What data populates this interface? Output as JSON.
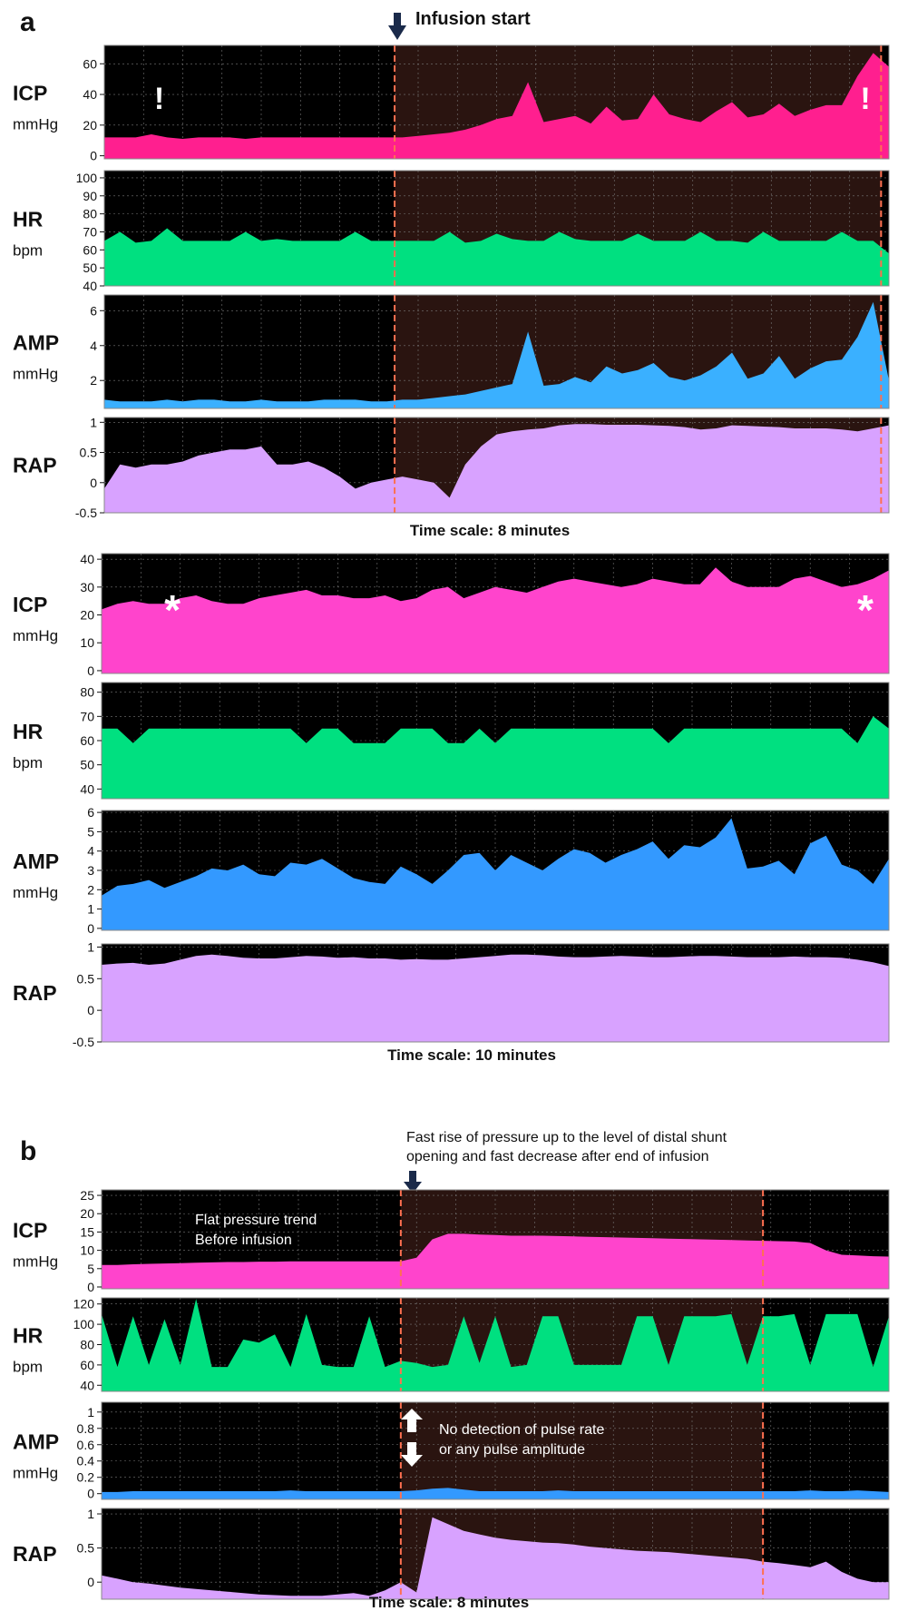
{
  "panel_a_label": "a",
  "panel_b_label": "b",
  "infusion_label": "Infusion start",
  "annotation_b": [
    "Fast rise of pressure up to the level of distal shunt",
    "opening and fast decrease after end of infusion"
  ],
  "colors": {
    "icp": "#ff1f8f",
    "icp_b": "#ff44cc",
    "hr": "#00e080",
    "amp": "#3ab0ff",
    "amp_b": "#3399ff",
    "rap": "#d8a2ff",
    "infusion_bg": "#2a1410",
    "marker": "#ff7050"
  },
  "chart_data": [
    {
      "type": "area",
      "block": "a-top",
      "time_scale_label": "Time scale: 8 minutes",
      "x": [
        0,
        2,
        4,
        6,
        8,
        10,
        12,
        14,
        16,
        18,
        20,
        22,
        24,
        26,
        28,
        30,
        32,
        34,
        36,
        38,
        40,
        42,
        44,
        46,
        48,
        50,
        52,
        54,
        56,
        58,
        60,
        62,
        64,
        66,
        68,
        70,
        72,
        74,
        76,
        78,
        80,
        82,
        84,
        86,
        88,
        90,
        92,
        94,
        96,
        98,
        100
      ],
      "infusion_interval": [
        37,
        99
      ],
      "annotations": [
        {
          "panel": "ICP",
          "text": "!",
          "x": [
            7,
            97
          ]
        }
      ],
      "panels": [
        {
          "name": "ICP",
          "unit": "mmHg",
          "color_key": "icp",
          "yticks": [
            0,
            20,
            40,
            60
          ],
          "ylim": [
            -2,
            72
          ],
          "values": [
            12,
            12,
            12,
            14,
            12,
            11,
            12,
            12,
            12,
            11,
            12,
            12,
            12,
            12,
            12,
            12,
            12,
            12,
            12,
            12,
            13,
            14,
            15,
            17,
            20,
            24,
            26,
            48,
            22,
            24,
            26,
            21,
            32,
            23,
            24,
            40,
            27,
            24,
            22,
            29,
            35,
            25,
            27,
            34,
            26,
            30,
            33,
            33,
            52,
            67,
            58
          ]
        },
        {
          "name": "HR",
          "unit": "bpm",
          "color_key": "hr",
          "yticks": [
            40,
            50,
            60,
            70,
            80,
            90,
            100
          ],
          "ylim": [
            40,
            104
          ],
          "values": [
            65,
            70,
            64,
            65,
            72,
            65,
            65,
            65,
            65,
            70,
            65,
            66,
            65,
            65,
            65,
            65,
            70,
            65,
            65,
            65,
            65,
            65,
            70,
            64,
            65,
            69,
            66,
            65,
            65,
            70,
            66,
            65,
            65,
            65,
            69,
            65,
            65,
            65,
            70,
            65,
            65,
            64,
            70,
            65,
            65,
            65,
            65,
            70,
            65,
            65,
            58
          ]
        },
        {
          "name": "AMP",
          "unit": "mmHg",
          "color_key": "amp",
          "yticks": [
            2,
            4,
            6
          ],
          "ylim": [
            0.4,
            6.9
          ],
          "values": [
            0.9,
            0.8,
            0.8,
            0.8,
            0.9,
            0.8,
            0.9,
            0.9,
            0.8,
            0.8,
            0.9,
            0.8,
            0.8,
            0.8,
            0.9,
            0.9,
            0.9,
            0.8,
            0.8,
            0.9,
            0.9,
            1.0,
            1.1,
            1.2,
            1.4,
            1.6,
            1.8,
            4.8,
            1.7,
            1.8,
            2.2,
            1.9,
            2.8,
            2.4,
            2.6,
            3.0,
            2.2,
            2.0,
            2.3,
            2.8,
            3.6,
            2.1,
            2.4,
            3.4,
            2.1,
            2.7,
            3.1,
            3.2,
            4.5,
            6.5,
            2.0
          ]
        },
        {
          "name": "RAP",
          "unit": "",
          "color_key": "rap",
          "yticks": [
            -0.5,
            0,
            0.5,
            1
          ],
          "ylim": [
            -0.5,
            1.08
          ],
          "values": [
            -0.1,
            0.3,
            0.25,
            0.3,
            0.3,
            0.35,
            0.45,
            0.5,
            0.55,
            0.55,
            0.6,
            0.3,
            0.3,
            0.35,
            0.25,
            0.1,
            -0.1,
            0.0,
            0.05,
            0.1,
            0.05,
            0.0,
            -0.25,
            0.3,
            0.6,
            0.8,
            0.85,
            0.88,
            0.9,
            0.95,
            0.97,
            0.97,
            0.96,
            0.96,
            0.96,
            0.95,
            0.94,
            0.92,
            0.88,
            0.9,
            0.95,
            0.94,
            0.93,
            0.92,
            0.9,
            0.9,
            0.9,
            0.88,
            0.85,
            0.9,
            0.95
          ]
        }
      ]
    },
    {
      "type": "area",
      "block": "a-bottom",
      "time_scale_label": "Time scale: 10 minutes",
      "x": [
        0,
        2,
        4,
        6,
        8,
        10,
        12,
        14,
        16,
        18,
        20,
        22,
        24,
        26,
        28,
        30,
        32,
        34,
        36,
        38,
        40,
        42,
        44,
        46,
        48,
        50,
        52,
        54,
        56,
        58,
        60,
        62,
        64,
        66,
        68,
        70,
        72,
        74,
        76,
        78,
        80,
        82,
        84,
        86,
        88,
        90,
        92,
        94,
        96,
        98,
        100
      ],
      "annotations": [
        {
          "panel": "ICP",
          "text": "*",
          "x": [
            9,
            97
          ]
        }
      ],
      "panels": [
        {
          "name": "ICP",
          "unit": "mmHg",
          "color_key": "icp_b",
          "yticks": [
            0,
            10,
            20,
            30,
            40
          ],
          "ylim": [
            -1,
            42
          ],
          "values": [
            22,
            24,
            25,
            24,
            24,
            26,
            27,
            25,
            24,
            24,
            26,
            27,
            28,
            29,
            27,
            27,
            26,
            26,
            27,
            25,
            26,
            29,
            30,
            26,
            28,
            30,
            29,
            28,
            30,
            32,
            33,
            32,
            31,
            30,
            31,
            33,
            32,
            31,
            31,
            37,
            32,
            30,
            30,
            30,
            33,
            34,
            32,
            30,
            31,
            33,
            36
          ]
        },
        {
          "name": "HR",
          "unit": "bpm",
          "color_key": "hr",
          "yticks": [
            40,
            50,
            60,
            70,
            80
          ],
          "ylim": [
            36,
            84
          ],
          "values": [
            65,
            65,
            59,
            65,
            65,
            65,
            65,
            65,
            65,
            65,
            65,
            65,
            65,
            59,
            65,
            65,
            59,
            59,
            59,
            65,
            65,
            65,
            59,
            59,
            65,
            59,
            65,
            65,
            65,
            65,
            65,
            65,
            65,
            65,
            65,
            65,
            59,
            65,
            65,
            65,
            65,
            65,
            65,
            65,
            65,
            65,
            65,
            65,
            59,
            70,
            65
          ]
        },
        {
          "name": "AMP",
          "unit": "mmHg",
          "color_key": "amp_b",
          "yticks": [
            0,
            1,
            2,
            3,
            4,
            5,
            6
          ],
          "ylim": [
            -0.1,
            6.1
          ],
          "values": [
            1.7,
            2.2,
            2.3,
            2.5,
            2.1,
            2.4,
            2.7,
            3.1,
            3.0,
            3.3,
            2.8,
            2.7,
            3.4,
            3.3,
            3.6,
            3.1,
            2.6,
            2.4,
            2.3,
            3.2,
            2.8,
            2.3,
            3.0,
            3.8,
            3.9,
            3.0,
            3.8,
            3.4,
            3.0,
            3.6,
            4.1,
            3.9,
            3.4,
            3.8,
            4.1,
            4.5,
            3.6,
            4.3,
            4.2,
            4.7,
            5.7,
            3.1,
            3.2,
            3.5,
            2.8,
            4.4,
            4.8,
            3.3,
            3.0,
            2.3,
            3.6
          ]
        },
        {
          "name": "RAP",
          "unit": "",
          "color_key": "rap",
          "yticks": [
            -0.5,
            0,
            0.5,
            1
          ],
          "ylim": [
            -0.5,
            1.05
          ],
          "values": [
            0.72,
            0.74,
            0.75,
            0.72,
            0.74,
            0.8,
            0.86,
            0.88,
            0.86,
            0.83,
            0.82,
            0.82,
            0.84,
            0.86,
            0.85,
            0.83,
            0.84,
            0.82,
            0.82,
            0.8,
            0.81,
            0.8,
            0.8,
            0.82,
            0.84,
            0.86,
            0.88,
            0.88,
            0.87,
            0.85,
            0.84,
            0.84,
            0.85,
            0.86,
            0.85,
            0.84,
            0.84,
            0.85,
            0.86,
            0.86,
            0.85,
            0.84,
            0.84,
            0.84,
            0.85,
            0.84,
            0.84,
            0.83,
            0.8,
            0.76,
            0.7
          ]
        }
      ]
    },
    {
      "type": "area",
      "block": "b",
      "time_scale_label": "Time scale: 8 minutes",
      "x": [
        0,
        2,
        4,
        6,
        8,
        10,
        12,
        14,
        16,
        18,
        20,
        22,
        24,
        26,
        28,
        30,
        32,
        34,
        36,
        38,
        40,
        42,
        44,
        46,
        48,
        50,
        52,
        54,
        56,
        58,
        60,
        62,
        64,
        66,
        68,
        70,
        72,
        74,
        76,
        78,
        80,
        82,
        84,
        86,
        88,
        90,
        92,
        94,
        96,
        98,
        100
      ],
      "infusion_interval": [
        38,
        84
      ],
      "annotations": [
        {
          "panel": "ICP",
          "lines": [
            "Flat pressure trend",
            "Before infusion"
          ]
        },
        {
          "panel": "AMP",
          "lines": [
            "No detection of pulse rate",
            "or any pulse amplitude"
          ]
        }
      ],
      "panels": [
        {
          "name": "ICP",
          "unit": "mmHg",
          "color_key": "icp_b",
          "yticks": [
            0,
            5,
            10,
            15,
            20,
            25
          ],
          "ylim": [
            -0.5,
            26.5
          ],
          "values": [
            6,
            6,
            6.2,
            6.3,
            6.4,
            6.5,
            6.6,
            6.7,
            6.8,
            6.8,
            6.9,
            6.9,
            7,
            7,
            7,
            7,
            7,
            7,
            7,
            7,
            8,
            13,
            14.5,
            14.5,
            14.3,
            14.2,
            14,
            14,
            14,
            13.9,
            13.8,
            13.7,
            13.6,
            13.5,
            13.4,
            13.3,
            13.2,
            13.1,
            13,
            12.9,
            12.8,
            12.7,
            12.6,
            12.5,
            12.4,
            12,
            10,
            8.8,
            8.6,
            8.4,
            8.3
          ]
        },
        {
          "name": "HR",
          "unit": "bpm",
          "color_key": "hr",
          "yticks": [
            40,
            60,
            80,
            100,
            120
          ],
          "ylim": [
            34,
            126
          ],
          "values": [
            110,
            58,
            108,
            60,
            105,
            60,
            125,
            58,
            58,
            85,
            82,
            90,
            58,
            110,
            60,
            58,
            58,
            108,
            58,
            64,
            62,
            58,
            60,
            108,
            62,
            108,
            58,
            60,
            108,
            108,
            60,
            60,
            60,
            60,
            108,
            108,
            60,
            108,
            108,
            108,
            110,
            60,
            108,
            108,
            110,
            60,
            110,
            110,
            110,
            58,
            108
          ]
        },
        {
          "name": "AMP",
          "unit": "mmHg",
          "color_key": "amp_b",
          "yticks": [
            0,
            0.2,
            0.4,
            0.6,
            0.8,
            1
          ],
          "ylim": [
            -0.07,
            1.12
          ],
          "values": [
            0.02,
            0.02,
            0.03,
            0.03,
            0.03,
            0.03,
            0.03,
            0.03,
            0.03,
            0.03,
            0.03,
            0.03,
            0.04,
            0.03,
            0.03,
            0.03,
            0.03,
            0.03,
            0.03,
            0.03,
            0.04,
            0.06,
            0.07,
            0.05,
            0.03,
            0.03,
            0.03,
            0.03,
            0.03,
            0.04,
            0.03,
            0.03,
            0.03,
            0.03,
            0.03,
            0.03,
            0.03,
            0.03,
            0.03,
            0.03,
            0.03,
            0.03,
            0.03,
            0.03,
            0.03,
            0.04,
            0.03,
            0.03,
            0.04,
            0.03,
            0.02
          ]
        },
        {
          "name": "RAP",
          "unit": "",
          "color_key": "rap",
          "yticks": [
            0,
            0.5,
            1
          ],
          "ylim": [
            -0.25,
            1.08
          ],
          "values": [
            0.1,
            0.05,
            0.0,
            -0.02,
            -0.05,
            -0.08,
            -0.1,
            -0.12,
            -0.14,
            -0.16,
            -0.18,
            -0.19,
            -0.2,
            -0.2,
            -0.2,
            -0.18,
            -0.16,
            -0.2,
            -0.12,
            0.0,
            -0.15,
            0.95,
            0.85,
            0.75,
            0.7,
            0.65,
            0.62,
            0.6,
            0.58,
            0.57,
            0.55,
            0.52,
            0.5,
            0.48,
            0.46,
            0.45,
            0.44,
            0.42,
            0.4,
            0.38,
            0.36,
            0.34,
            0.3,
            0.28,
            0.25,
            0.22,
            0.3,
            0.15,
            0.05,
            0.0,
            0.0
          ]
        }
      ]
    }
  ]
}
